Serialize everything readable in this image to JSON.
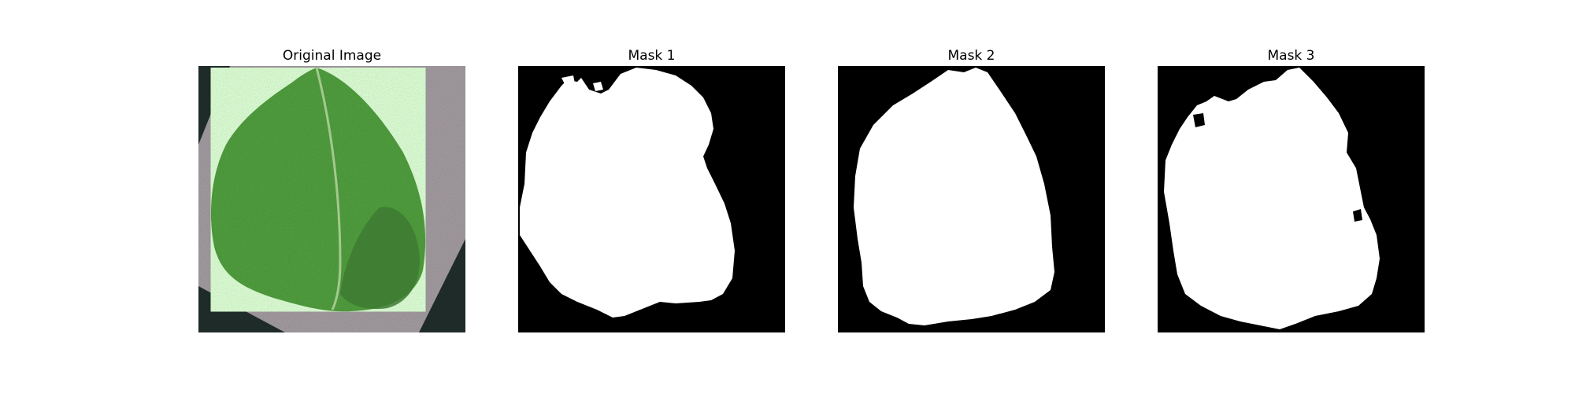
{
  "panels": [
    {
      "title": "Original Image"
    },
    {
      "title": "Mask 1"
    },
    {
      "title": "Mask 2"
    },
    {
      "title": "Mask 3"
    }
  ],
  "colors": {
    "background": "#ffffff",
    "mask_background": "#000000",
    "mask_foreground": "#ffffff",
    "leaf_green": "#5e9e4c",
    "leaf_dark_green": "#3d7a32",
    "leaf_vein": "#b9d6a3",
    "paper_gray": "#a59ea3",
    "dark_border": "#1e2b28"
  }
}
